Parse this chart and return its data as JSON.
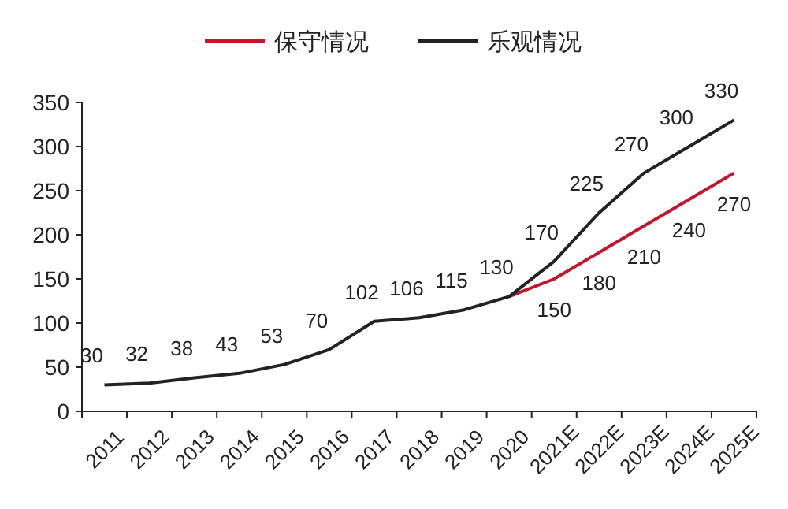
{
  "chart_data": {
    "type": "line",
    "categories": [
      "2011",
      "2012",
      "2013",
      "2014",
      "2015",
      "2016",
      "2017",
      "2018",
      "2019",
      "2020",
      "2021E",
      "2022E",
      "2023E",
      "2024E",
      "2025E"
    ],
    "series": [
      {
        "name": "保守情况",
        "color": "#c0172e",
        "values": [
          null,
          null,
          null,
          null,
          null,
          null,
          null,
          null,
          null,
          130,
          150,
          180,
          210,
          240,
          270
        ],
        "value_labels": [
          null,
          null,
          null,
          null,
          null,
          null,
          null,
          null,
          null,
          null,
          "150",
          "180",
          "210",
          "240",
          "270"
        ]
      },
      {
        "name": "乐观情况",
        "color": "#222222",
        "values": [
          30,
          32,
          38,
          43,
          53,
          70,
          102,
          106,
          115,
          130,
          170,
          225,
          270,
          300,
          330
        ],
        "value_labels": [
          "30",
          "32",
          "38",
          "43",
          "53",
          "70",
          "102",
          "106",
          "115",
          "130",
          "170",
          "225",
          "270",
          "300",
          "330"
        ]
      }
    ],
    "ylim": [
      0,
      350
    ],
    "yticks": [
      0,
      50,
      100,
      150,
      200,
      250,
      300,
      350
    ],
    "grid": false,
    "legend": "top",
    "marker": "none",
    "line_style": "solid"
  }
}
